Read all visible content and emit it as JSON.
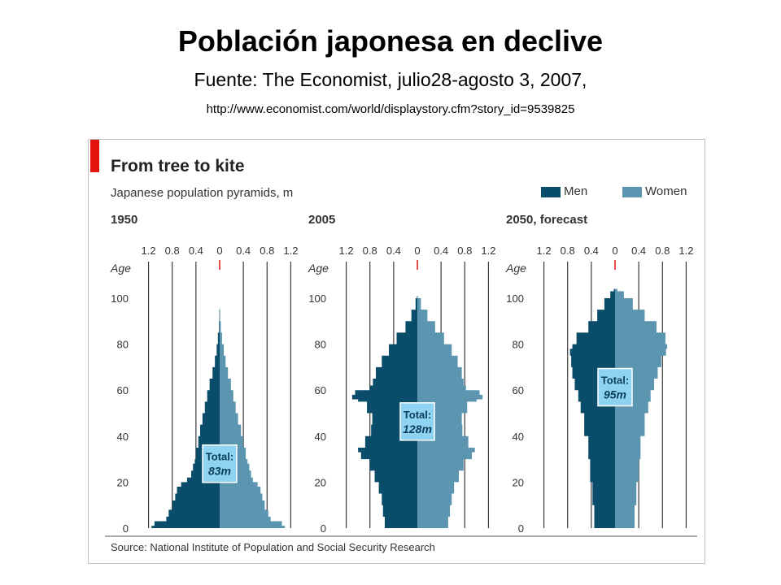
{
  "slide": {
    "title": "Población japonesa en declive",
    "subtitle": "Fuente: The Economist, julio28-agosto 3, 2007,",
    "url": "http://www.economist.com/world/displaystory.cfm?story_id=9539825"
  },
  "colors": {
    "men": "#0a4d6b",
    "women": "#5b95b0",
    "accent": "#e3120b",
    "total_box": "#8fd3f2",
    "grid": "#3a3a3a"
  },
  "chart_data": {
    "type": "pyramid",
    "title": "From tree to kite",
    "subtitle": "Japanese population pyramids, m",
    "legend": [
      "Men",
      "Women"
    ],
    "source": "Source: National Institute of Population and Social Security Research",
    "axis_ticks": [
      "1.2",
      "0.8",
      "0.4",
      "0",
      "0.4",
      "0.8",
      "1.2"
    ],
    "age_label": "Age",
    "age_ticks": [
      "100",
      "80",
      "60",
      "40",
      "20",
      "0"
    ],
    "xlim": [
      -1.4,
      1.4
    ],
    "ylim": [
      0,
      106
    ],
    "total_label": "Total:",
    "panels": [
      {
        "label": "1950",
        "total": "83m",
        "ages": [
          0,
          1,
          3,
          5,
          8,
          12,
          15,
          18,
          20,
          22,
          25,
          28,
          30,
          35,
          40,
          45,
          50,
          55,
          60,
          65,
          70,
          75,
          80,
          85,
          90,
          95
        ],
        "men": [
          1.15,
          1.1,
          0.9,
          0.86,
          0.8,
          0.75,
          0.72,
          0.65,
          0.55,
          0.48,
          0.45,
          0.42,
          0.4,
          0.36,
          0.33,
          0.29,
          0.25,
          0.21,
          0.17,
          0.12,
          0.08,
          0.05,
          0.03,
          0.01,
          0.005,
          0.001
        ],
        "women": [
          1.1,
          1.05,
          0.86,
          0.82,
          0.76,
          0.72,
          0.69,
          0.64,
          0.56,
          0.53,
          0.5,
          0.47,
          0.44,
          0.4,
          0.36,
          0.31,
          0.27,
          0.23,
          0.19,
          0.14,
          0.1,
          0.07,
          0.04,
          0.02,
          0.008,
          0.002
        ]
      },
      {
        "label": "2005",
        "total": "128m",
        "ages": [
          0,
          5,
          10,
          15,
          20,
          25,
          30,
          33,
          35,
          40,
          45,
          50,
          55,
          56,
          58,
          60,
          62,
          65,
          70,
          75,
          80,
          85,
          90,
          95,
          100
        ],
        "men": [
          0.55,
          0.58,
          0.6,
          0.65,
          0.72,
          0.8,
          0.95,
          1.0,
          0.88,
          0.78,
          0.76,
          0.85,
          1.0,
          1.1,
          1.05,
          0.8,
          0.75,
          0.7,
          0.6,
          0.48,
          0.35,
          0.2,
          0.1,
          0.03,
          0.005
        ],
        "women": [
          0.52,
          0.55,
          0.58,
          0.62,
          0.7,
          0.78,
          0.92,
          0.97,
          0.86,
          0.76,
          0.75,
          0.84,
          1.0,
          1.1,
          1.05,
          0.82,
          0.78,
          0.75,
          0.68,
          0.58,
          0.45,
          0.3,
          0.17,
          0.06,
          0.01
        ]
      },
      {
        "label": "2050, forecast",
        "total": "95m",
        "ages": [
          0,
          10,
          20,
          30,
          40,
          50,
          55,
          60,
          65,
          70,
          75,
          78,
          80,
          85,
          90,
          95,
          100,
          103
        ],
        "men": [
          0.35,
          0.38,
          0.42,
          0.45,
          0.52,
          0.58,
          0.62,
          0.68,
          0.72,
          0.74,
          0.76,
          0.72,
          0.65,
          0.45,
          0.3,
          0.18,
          0.08,
          0.02
        ],
        "women": [
          0.33,
          0.36,
          0.4,
          0.43,
          0.5,
          0.56,
          0.6,
          0.66,
          0.72,
          0.78,
          0.86,
          0.88,
          0.85,
          0.7,
          0.5,
          0.3,
          0.15,
          0.04
        ]
      }
    ]
  }
}
